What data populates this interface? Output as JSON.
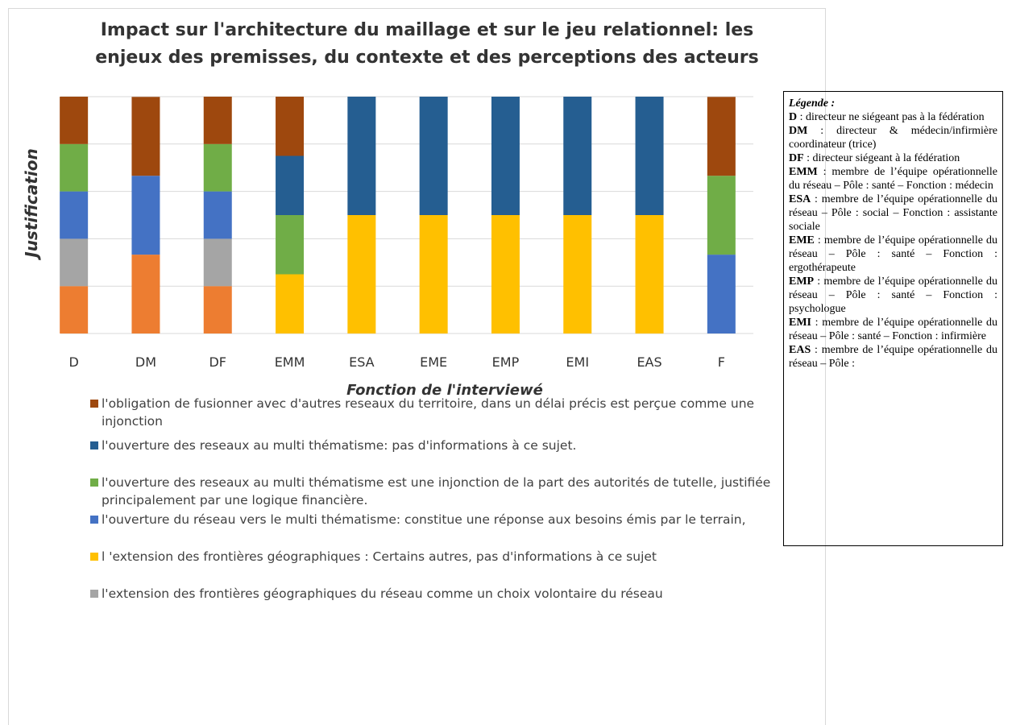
{
  "chart_data": {
    "type": "stacked_bar",
    "title": "Impact sur l'architecture du maillage et sur le jeu relationnel: les enjeux des premisses, du contexte et des perceptions des acteurs",
    "x_label": "Fonction de l'interviewé",
    "y_label": "Justification",
    "categories": [
      "D",
      "DM",
      "DF",
      "EMM",
      "ESA",
      "EME",
      "EMP",
      "EMI",
      "EAS",
      "F"
    ],
    "ylim": [
      0,
      100
    ],
    "yticks": [
      0,
      20,
      40,
      60,
      80,
      100
    ],
    "grid": true,
    "series": [
      {
        "name": null,
        "color": "#ed7d31",
        "values": [
          20,
          33.3,
          20,
          0,
          0,
          0,
          0,
          0,
          0,
          0
        ]
      },
      {
        "name": "l'extension des frontières géographiques du réseau comme un choix volontaire du réseau",
        "color": "#a5a5a5",
        "values": [
          20,
          0,
          20,
          0,
          0,
          0,
          0,
          0,
          0,
          0
        ]
      },
      {
        "name": "l 'extension des frontières géographiques : Certains autres, pas d'informations à ce sujet",
        "color": "#ffc000",
        "values": [
          0,
          0,
          0,
          25,
          50,
          50,
          50,
          50,
          50,
          0
        ]
      },
      {
        "name": "l'ouverture du réseau vers le multi thématisme: constitue une réponse aux besoins émis par le terrain,",
        "color": "#4472c4",
        "values": [
          20,
          33.3,
          20,
          0,
          0,
          0,
          0,
          0,
          0,
          33.3
        ]
      },
      {
        "name": "l'ouverture des reseaux au multi thématisme est une injonction de la part des autorités de tutelle, justifiée principalement par une logique financière.",
        "color": "#70ad47",
        "values": [
          20,
          0,
          20,
          25,
          0,
          0,
          0,
          0,
          0,
          33.3
        ]
      },
      {
        "name": "l'ouverture des reseaux au multi thématisme: pas d'informations à ce sujet.",
        "color": "#255e91",
        "values": [
          0,
          0,
          0,
          25,
          50,
          50,
          50,
          50,
          50,
          0
        ]
      },
      {
        "name": "l'obligation de fusionner avec d'autres reseaux du territoire, dans un délai précis est perçue comme une injonction",
        "color": "#9e480e",
        "values": [
          20,
          33.3,
          20,
          25,
          0,
          0,
          0,
          0,
          0,
          33.3
        ]
      }
    ]
  },
  "side_legend": {
    "title": "Légende :",
    "entries": [
      {
        "code": "D",
        "text": " : directeur ne siégeant pas à la fédération"
      },
      {
        "code": "DM",
        "text": " : directeur & médecin/infirmière coordinateur (trice)"
      },
      {
        "code": "DF",
        "text": " : directeur siégeant à la fédération"
      },
      {
        "code": "EMM",
        "text": " : membre de l’équipe opérationnelle du réseau – Pôle : santé – Fonction : médecin"
      },
      {
        "code": "ESA",
        "text": " : membre de l’équipe opérationnelle du réseau – Pôle : social – Fonction : assistante sociale"
      },
      {
        "code": "EME",
        "text": " : membre de l’équipe opérationnelle du réseau – Pôle : santé – Fonction : ergothérapeute"
      },
      {
        "code": "EMP",
        "text": " : membre de l’équipe opérationnelle du réseau – Pôle : santé – Fonction : psychologue"
      },
      {
        "code": "EMI",
        "text": " : membre de l’équipe opérationnelle du réseau – Pôle : santé – Fonction : infirmière"
      },
      {
        "code": "EAS",
        "text": " : membre de l’équipe opérationnelle du réseau – Pôle :"
      }
    ]
  }
}
